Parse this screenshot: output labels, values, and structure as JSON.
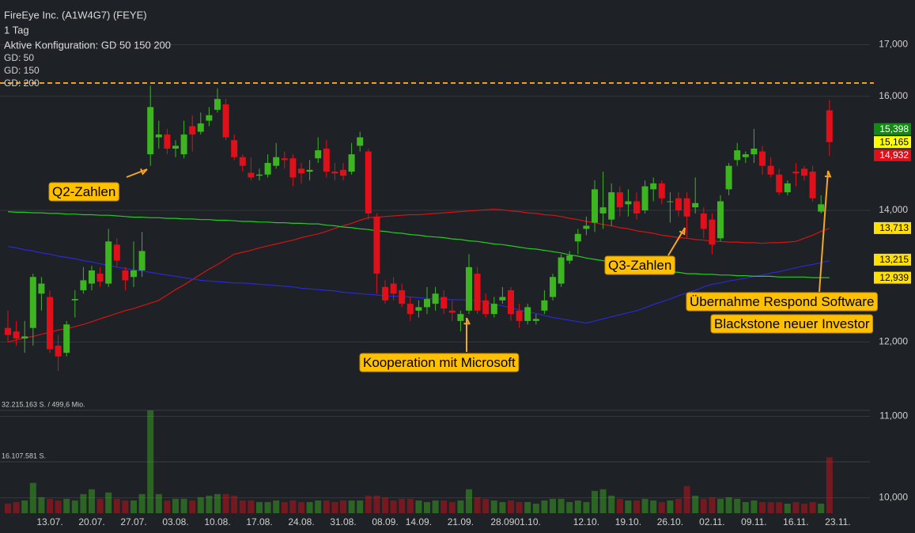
{
  "chart_data": {
    "type": "candlestick",
    "title": "FireEye Inc. (A1W4G7) (FEYE)",
    "subtitle": "1 Tag",
    "config": "Aktive Konfiguration: GD 50 150 200",
    "log_y": true,
    "ylim": [
      9.83,
      17.91
    ],
    "yticks": [
      {
        "value": 10,
        "label": "10,000"
      },
      {
        "value": 11,
        "label": "11,000"
      },
      {
        "value": 12,
        "label": "12,000"
      },
      {
        "value": 14,
        "label": "14,000"
      },
      {
        "value": 16,
        "label": "16,000"
      },
      {
        "value": 17,
        "label": "17,000"
      }
    ],
    "grid": true,
    "up_color": "#3cb521",
    "down_color": "#e0101a",
    "categories": [
      null,
      null,
      null,
      null,
      null,
      "13.07.",
      null,
      null,
      null,
      null,
      "20.07.",
      null,
      null,
      null,
      null,
      "27.07.",
      null,
      null,
      null,
      null,
      "03.08.",
      null,
      null,
      null,
      null,
      "10.08.",
      null,
      null,
      null,
      null,
      "17.08.",
      null,
      null,
      null,
      null,
      "24.08.",
      null,
      null,
      null,
      null,
      "31.08.",
      null,
      null,
      null,
      null,
      "08.09.",
      null,
      null,
      null,
      "14.09.",
      null,
      null,
      null,
      null,
      "21.09.",
      null,
      null,
      null,
      null,
      "28.09",
      null,
      null,
      "01.10.",
      null,
      null,
      null,
      null,
      null,
      null,
      "12.10.",
      null,
      null,
      null,
      null,
      "19.10.",
      null,
      null,
      null,
      null,
      "26.10.",
      null,
      null,
      null,
      null,
      "02.11.",
      null,
      null,
      null,
      null,
      "09.11.",
      null,
      null,
      null,
      null,
      "16.11.",
      null,
      null,
      null,
      null,
      "23.11."
    ],
    "open": [
      12.2,
      12.15,
      12.05,
      12.2,
      12.7,
      12.65,
      11.95,
      11.85,
      12.6,
      12.75,
      12.85,
      13.0,
      12.85,
      13.45,
      13.05,
      12.95,
      13.05,
      14.95,
      15.25,
      15.3,
      15.05,
      14.95,
      15.45,
      15.35,
      15.55,
      15.75,
      15.85,
      15.2,
      14.9,
      14.63,
      14.58,
      14.6,
      14.75,
      14.88,
      14.88,
      14.7,
      14.65,
      14.88,
      15.05,
      14.65,
      14.68,
      14.65,
      15.1,
      15.0,
      13.9,
      12.8,
      12.85,
      12.75,
      12.55,
      12.45,
      12.5,
      12.55,
      12.65,
      12.45,
      12.3,
      12.45,
      13.0,
      12.6,
      12.4,
      12.6,
      12.75,
      12.45,
      12.3,
      12.3,
      12.45,
      12.65,
      12.85,
      13.2,
      13.5,
      13.7,
      13.8,
      13.95,
      13.85,
      14.3,
      14.1,
      14.15,
      14.0,
      14.35,
      14.45,
      14.15,
      14.2,
      14.2,
      14.05,
      13.95,
      13.85,
      13.55,
      14.35,
      14.85,
      14.9,
      14.95,
      15.0,
      14.75,
      14.6,
      14.3,
      14.65,
      14.7,
      14.65,
      13.98,
      15.74,
      null
    ],
    "high": [
      12.45,
      12.3,
      12.3,
      13.0,
      12.95,
      12.75,
      12.1,
      12.3,
      12.75,
      13.1,
      13.12,
      13.1,
      13.7,
      13.55,
      13.1,
      13.5,
      13.65,
      16.2,
      15.55,
      15.4,
      15.2,
      15.55,
      15.65,
      15.7,
      15.8,
      16.15,
      15.95,
      15.3,
      14.95,
      14.9,
      14.7,
      14.95,
      15.15,
      15.0,
      14.95,
      14.8,
      14.85,
      15.25,
      15.2,
      14.8,
      14.8,
      15.15,
      15.35,
      15.05,
      13.95,
      12.9,
      12.95,
      12.85,
      12.65,
      12.6,
      12.8,
      12.8,
      12.75,
      12.6,
      12.45,
      13.3,
      13.1,
      12.7,
      12.65,
      12.8,
      12.8,
      12.55,
      12.55,
      12.4,
      12.75,
      13.0,
      13.3,
      13.35,
      13.7,
      13.9,
      14.5,
      14.65,
      14.45,
      14.4,
      14.35,
      14.3,
      14.5,
      14.55,
      14.5,
      14.3,
      14.3,
      14.3,
      14.55,
      14.05,
      13.95,
      14.25,
      14.8,
      15.15,
      15.0,
      15.4,
      15.1,
      14.9,
      14.7,
      14.5,
      14.8,
      14.75,
      14.75,
      14.25,
      15.93,
      null
    ],
    "low": [
      12.0,
      11.95,
      11.85,
      11.95,
      12.45,
      11.85,
      11.6,
      11.8,
      12.35,
      12.7,
      12.75,
      12.8,
      12.8,
      13.1,
      12.75,
      12.8,
      12.95,
      14.75,
      15.05,
      14.95,
      14.9,
      14.88,
      15.0,
      15.3,
      15.45,
      15.7,
      15.2,
      14.85,
      14.65,
      14.5,
      14.5,
      14.55,
      14.7,
      14.7,
      14.4,
      14.45,
      14.5,
      14.8,
      14.55,
      14.5,
      14.5,
      14.6,
      15.0,
      13.85,
      12.7,
      12.55,
      12.6,
      12.5,
      12.3,
      12.35,
      12.4,
      12.45,
      12.4,
      12.3,
      12.15,
      12.4,
      12.4,
      12.35,
      12.35,
      12.55,
      12.3,
      12.2,
      12.25,
      12.25,
      12.4,
      12.6,
      12.8,
      13.15,
      13.3,
      13.6,
      13.65,
      13.7,
      13.75,
      13.9,
      13.9,
      13.85,
      13.95,
      14.15,
      14.1,
      13.8,
      13.9,
      13.55,
      13.95,
      13.55,
      13.3,
      13.5,
      14.25,
      14.75,
      14.8,
      14.8,
      14.6,
      14.55,
      14.25,
      14.25,
      14.4,
      14.5,
      14.15,
      13.95,
      14.92,
      null
    ],
    "close": [
      12.1,
      12.05,
      12.08,
      12.95,
      12.85,
      11.9,
      11.8,
      12.25,
      12.62,
      12.9,
      13.05,
      12.88,
      13.5,
      13.2,
      12.9,
      13.05,
      13.35,
      15.8,
      15.3,
      15.05,
      15.1,
      15.3,
      15.3,
      15.5,
      15.65,
      15.95,
      15.25,
      14.9,
      14.75,
      14.55,
      14.6,
      14.8,
      14.9,
      14.85,
      14.55,
      14.62,
      14.68,
      15.02,
      14.65,
      14.62,
      14.58,
      14.95,
      15.25,
      13.95,
      13.0,
      12.6,
      12.7,
      12.55,
      12.4,
      12.5,
      12.62,
      12.7,
      12.48,
      12.42,
      12.4,
      13.1,
      12.45,
      12.4,
      12.55,
      12.65,
      12.4,
      12.3,
      12.5,
      12.33,
      12.6,
      12.95,
      13.25,
      13.28,
      13.62,
      13.75,
      14.35,
      14.05,
      14.3,
      14.05,
      14.15,
      13.95,
      14.4,
      14.45,
      14.2,
      14.15,
      14.0,
      13.9,
      14.12,
      13.7,
      13.45,
      14.15,
      14.75,
      15.02,
      14.95,
      15.05,
      14.75,
      14.6,
      14.3,
      14.45,
      14.62,
      14.58,
      14.2,
      14.1,
      15.165,
      null
    ],
    "ma_series": [
      {
        "name": "GD: 50",
        "color": "#d41414",
        "values": [
          12.0,
          12.03,
          12.06,
          12.08,
          12.11,
          12.14,
          12.17,
          12.19,
          12.22,
          12.25,
          12.29,
          12.33,
          12.37,
          12.41,
          12.45,
          12.48,
          12.52,
          12.56,
          12.6,
          12.68,
          12.76,
          12.83,
          12.91,
          12.99,
          13.07,
          13.14,
          13.22,
          13.3,
          13.33,
          13.36,
          13.4,
          13.43,
          13.46,
          13.49,
          13.52,
          13.56,
          13.59,
          13.62,
          13.66,
          13.71,
          13.75,
          13.79,
          13.84,
          13.88,
          13.89,
          13.9,
          13.91,
          13.92,
          13.93,
          13.93,
          13.94,
          13.95,
          13.96,
          13.97,
          13.98,
          13.99,
          14.0,
          14.01,
          14.02,
          14.01,
          13.99,
          13.98,
          13.96,
          13.95,
          13.93,
          13.92,
          13.9,
          13.87,
          13.85,
          13.82,
          13.8,
          13.77,
          13.75,
          13.72,
          13.7,
          13.67,
          13.65,
          13.63,
          13.6,
          13.58,
          13.56,
          13.55,
          13.53,
          13.52,
          13.5,
          13.5,
          13.49,
          13.49,
          13.48,
          13.48,
          13.47,
          13.48,
          13.48,
          13.49,
          13.5,
          13.55,
          13.6,
          13.66,
          13.71,
          null
        ]
      },
      {
        "name": "GD: 150",
        "color": "#2a2ad0",
        "values": [
          13.42,
          13.4,
          13.37,
          13.35,
          13.32,
          13.3,
          13.27,
          13.25,
          13.23,
          13.2,
          13.18,
          13.15,
          13.13,
          13.1,
          13.08,
          13.06,
          13.04,
          13.02,
          13.0,
          12.98,
          12.96,
          12.94,
          12.92,
          12.9,
          12.89,
          12.88,
          12.87,
          12.86,
          12.86,
          12.85,
          12.84,
          12.83,
          12.82,
          12.81,
          12.8,
          12.78,
          12.77,
          12.76,
          12.75,
          12.74,
          12.72,
          12.71,
          12.7,
          12.69,
          12.68,
          12.67,
          12.66,
          12.66,
          12.65,
          12.64,
          12.63,
          12.62,
          12.62,
          12.61,
          12.61,
          12.6,
          12.6,
          12.57,
          12.54,
          12.52,
          12.49,
          12.46,
          12.43,
          12.41,
          12.38,
          12.35,
          12.33,
          12.31,
          12.29,
          12.27,
          12.3,
          12.33,
          12.36,
          12.39,
          12.42,
          12.45,
          12.49,
          12.54,
          12.58,
          12.62,
          12.67,
          12.71,
          12.75,
          12.8,
          12.84,
          12.86,
          12.89,
          12.91,
          12.93,
          12.96,
          12.98,
          13.01,
          13.03,
          13.06,
          13.09,
          13.12,
          13.14,
          13.17,
          13.2,
          null
        ]
      },
      {
        "name": "GD: 200",
        "color": "#22cc22",
        "values": [
          13.98,
          13.97,
          13.97,
          13.96,
          13.96,
          13.95,
          13.95,
          13.94,
          13.94,
          13.93,
          13.93,
          13.92,
          13.92,
          13.91,
          13.9,
          13.89,
          13.89,
          13.88,
          13.88,
          13.87,
          13.87,
          13.86,
          13.86,
          13.85,
          13.85,
          13.84,
          13.84,
          13.83,
          13.82,
          13.82,
          13.81,
          13.81,
          13.8,
          13.8,
          13.79,
          13.79,
          13.78,
          13.78,
          13.76,
          13.75,
          13.73,
          13.72,
          13.7,
          13.69,
          13.67,
          13.66,
          13.64,
          13.63,
          13.61,
          13.6,
          13.58,
          13.57,
          13.56,
          13.54,
          13.53,
          13.51,
          13.5,
          13.48,
          13.46,
          13.45,
          13.43,
          13.41,
          13.39,
          13.38,
          13.36,
          13.34,
          13.32,
          13.29,
          13.27,
          13.24,
          13.22,
          13.2,
          13.17,
          13.15,
          13.12,
          13.1,
          13.08,
          13.07,
          13.05,
          13.03,
          13.02,
          13.0,
          13.0,
          12.99,
          12.99,
          12.98,
          12.98,
          12.97,
          12.97,
          12.96,
          12.96,
          12.96,
          12.95,
          12.95,
          12.95,
          12.95,
          12.94,
          12.94,
          12.94,
          null
        ]
      }
    ],
    "volume": {
      "lim": [
        0,
        36900000
      ],
      "ticks": [
        {
          "value": 16107581,
          "label": "16.107.581 S."
        },
        {
          "value": 32215163,
          "label": "32.215.163 S. / 499,6 Mio."
        }
      ],
      "values": [
        3000000,
        3500000,
        4000000,
        9500000,
        5000000,
        4500000,
        4000000,
        4500000,
        4000000,
        6000000,
        7500000,
        4500000,
        6500000,
        4500000,
        4000000,
        4000000,
        6000000,
        32215163,
        6000000,
        4000000,
        4500000,
        4500000,
        4000000,
        5000000,
        5500000,
        6000000,
        6000000,
        5500000,
        4000000,
        4000000,
        3500000,
        3500000,
        4000000,
        3500000,
        4000000,
        3500000,
        3500000,
        4000000,
        4000000,
        3500000,
        4000000,
        4000000,
        4000000,
        5500000,
        5500000,
        5000000,
        4000000,
        4500000,
        4500000,
        4000000,
        3500000,
        4000000,
        4000000,
        3500000,
        4000000,
        7500000,
        5000000,
        4500000,
        4000000,
        3500000,
        4000000,
        3500000,
        3500000,
        3000000,
        4000000,
        4500000,
        4500000,
        3500000,
        4000000,
        3500000,
        7000000,
        7500000,
        5500000,
        4500000,
        4000000,
        4000000,
        4500000,
        4000000,
        3500000,
        4000000,
        4500000,
        8500000,
        5500000,
        4500000,
        5000000,
        4500000,
        5000000,
        4500000,
        3500000,
        4000000,
        3500000,
        3500000,
        3500000,
        3000000,
        3500000,
        3000000,
        3500000,
        3000000,
        17500000,
        null
      ]
    },
    "hline": {
      "value": 16.25,
      "color": "#f0a020"
    },
    "price_labels": [
      {
        "value": 15.398,
        "label": "15,398",
        "color": "#138a13"
      },
      {
        "value": 15.165,
        "label": "15,165",
        "color": "#ffff00"
      },
      {
        "value": 14.932,
        "label": "14,932",
        "color": "#e0101a"
      },
      {
        "value": 13.713,
        "label": "13,713",
        "color": "#ffe000"
      },
      {
        "value": 13.215,
        "label": "13,215",
        "color": "#ffe000"
      },
      {
        "value": 12.939,
        "label": "12,939",
        "color": "#ffe000"
      }
    ],
    "annotations": [
      {
        "text": "Q2-Zahlen"
      },
      {
        "text": "Kooperation mit Microsoft"
      },
      {
        "text": "Q3-Zahlen"
      },
      {
        "text": "Übernahme Respond Software"
      },
      {
        "text": "Blackstone neuer Investor"
      }
    ]
  }
}
